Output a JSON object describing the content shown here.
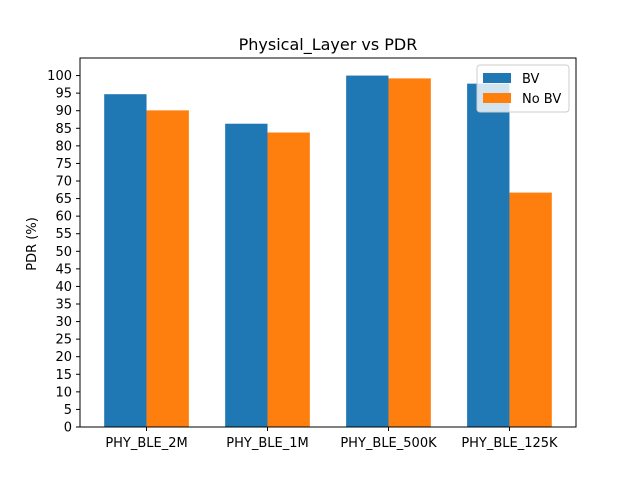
{
  "chart_data": {
    "type": "bar",
    "title": "Physical_Layer vs PDR",
    "xlabel": "",
    "ylabel": "PDR (%)",
    "categories": [
      "PHY_BLE_2M",
      "PHY_BLE_1M",
      "PHY_BLE_500K",
      "PHY_BLE_125K"
    ],
    "series": [
      {
        "name": "BV",
        "color": "#1f77b4",
        "values": [
          94.7,
          86.3,
          100.0,
          97.7
        ]
      },
      {
        "name": "No BV",
        "color": "#ff7f0e",
        "values": [
          90.1,
          83.8,
          99.2,
          66.7
        ]
      }
    ],
    "ylim": [
      0,
      105
    ],
    "yticks": [
      0,
      5,
      10,
      15,
      20,
      25,
      30,
      35,
      40,
      45,
      50,
      55,
      60,
      65,
      70,
      75,
      80,
      85,
      90,
      95,
      100
    ],
    "grid": false,
    "legend_position": "top-right"
  }
}
